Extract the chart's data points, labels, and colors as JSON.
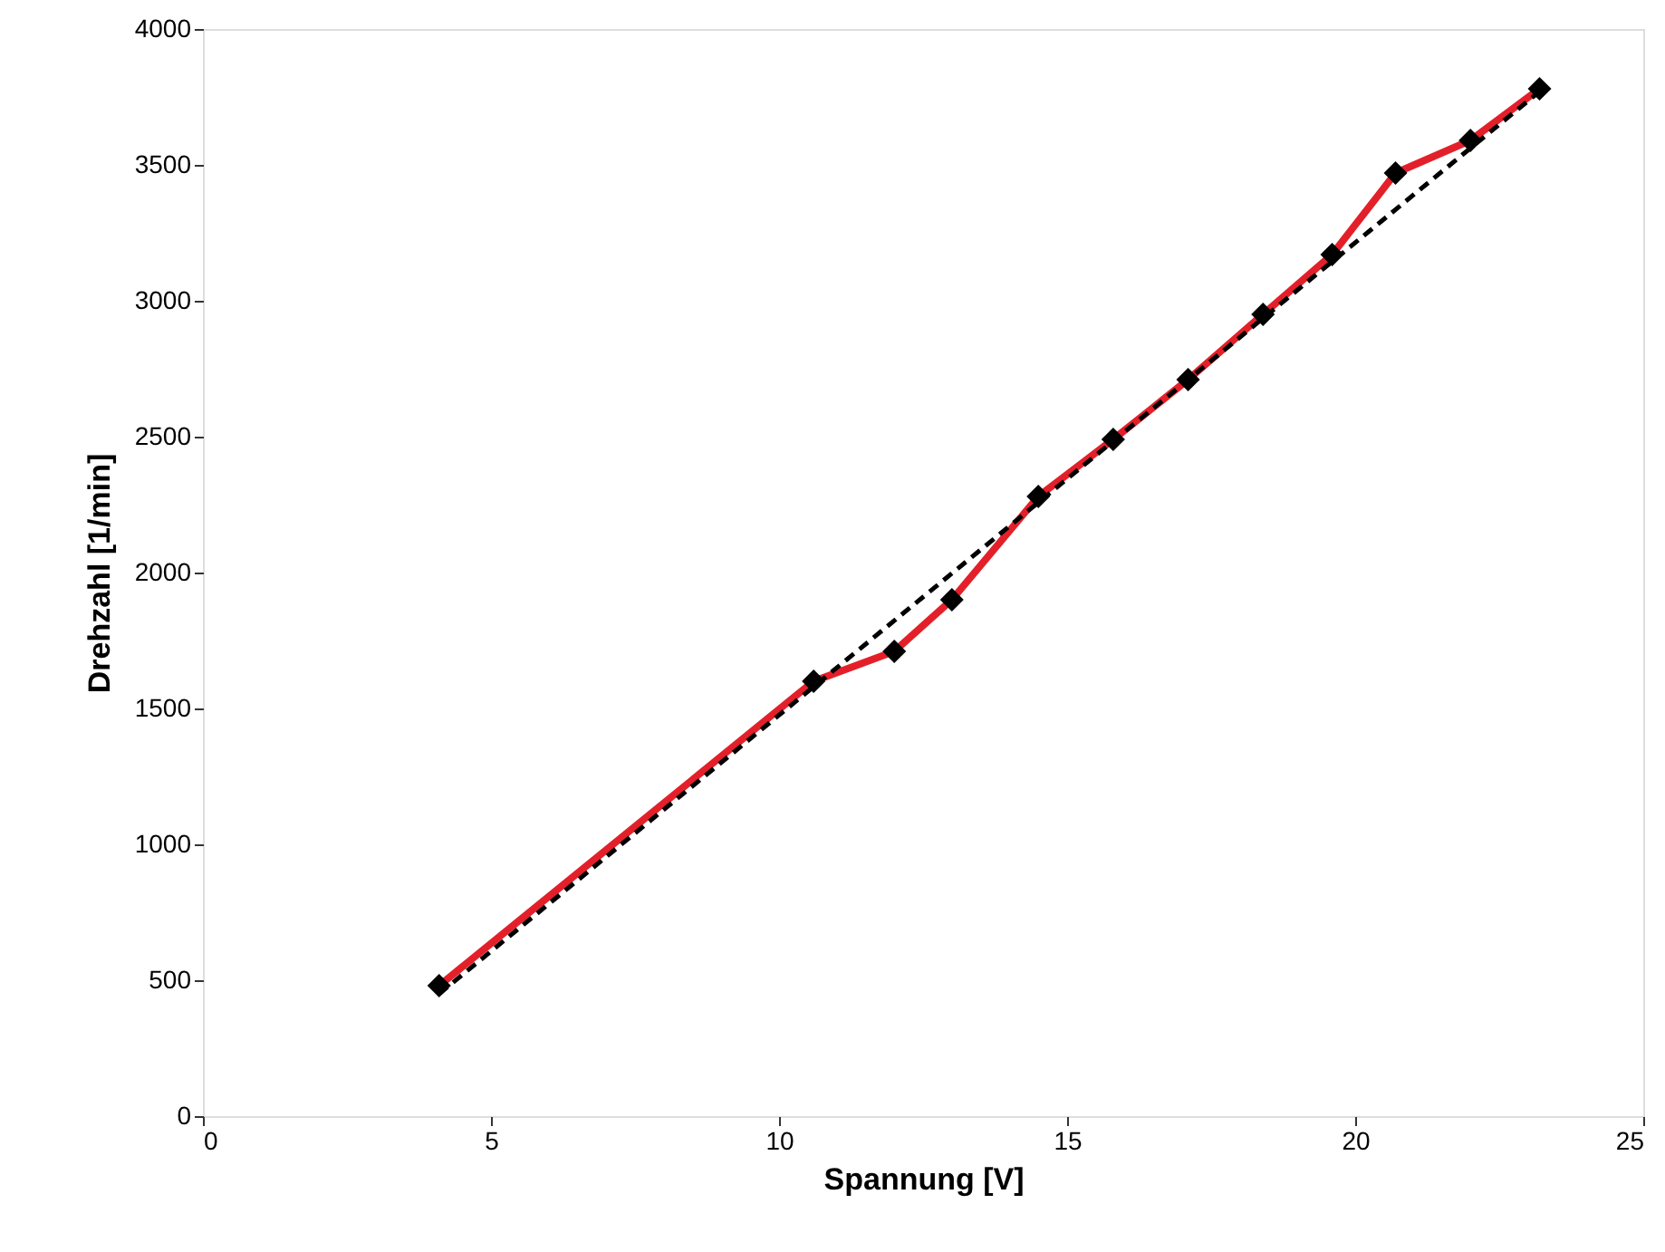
{
  "chart_data": {
    "type": "line",
    "xlabel": "Spannung [V]",
    "ylabel": "Drehzahl [1/min]",
    "xlim": [
      0,
      25
    ],
    "xticks": [
      0,
      5,
      10,
      15,
      20,
      25
    ],
    "ylim": [
      0,
      4000
    ],
    "yticks": [
      0,
      500,
      1000,
      1500,
      2000,
      2500,
      3000,
      3500,
      4000
    ],
    "grid": false,
    "series": [
      {
        "color": "#e3202a",
        "marker": "diamond",
        "line_style": "solid",
        "x": [
          4.1,
          10.6,
          12.0,
          13.0,
          14.5,
          15.8,
          17.1,
          18.4,
          19.6,
          20.7,
          22.0,
          23.2
        ],
        "values": [
          480,
          1600,
          1710,
          1900,
          2280,
          2490,
          2710,
          2950,
          3170,
          3470,
          3590,
          3780
        ]
      },
      {
        "color": "#000000",
        "line_style": "dashed",
        "x": [
          4.1,
          23.2
        ],
        "values": [
          450,
          3770
        ]
      }
    ]
  }
}
